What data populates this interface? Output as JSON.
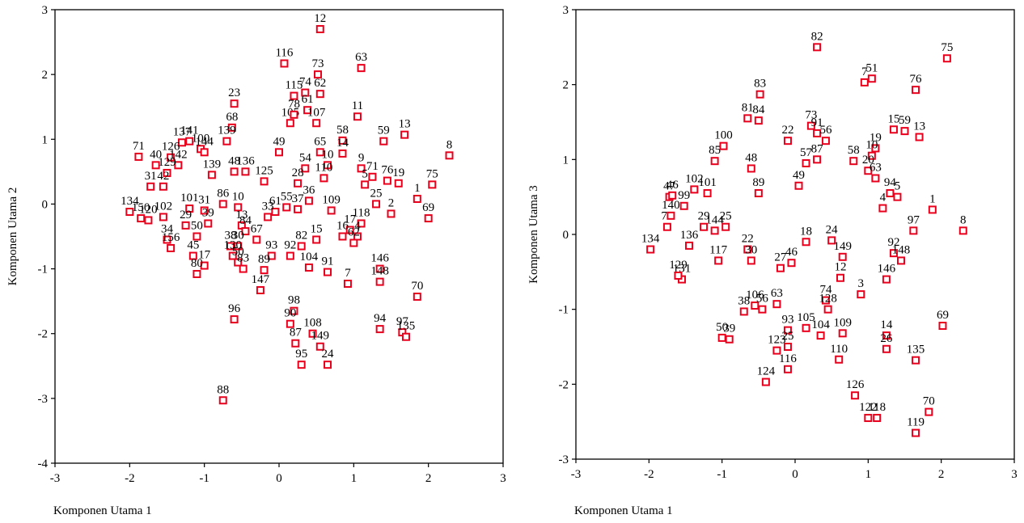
{
  "chart_data": [
    {
      "type": "scatter",
      "xlabel": "Komponen Utama 1",
      "ylabel": "Komponen Utama 2",
      "xlim": [
        -3,
        3
      ],
      "ylim": [
        -4,
        3
      ],
      "xticks": [
        -3,
        -2,
        -1,
        0,
        1,
        2,
        3
      ],
      "yticks": [
        -4,
        -3,
        -2,
        -1,
        0,
        1,
        2,
        3
      ],
      "grid": false,
      "marker_color": "#e8001c",
      "points": [
        {
          "label": "12",
          "x": 0.55,
          "y": 2.7
        },
        {
          "label": "116",
          "x": 0.07,
          "y": 2.17
        },
        {
          "label": "63",
          "x": 1.1,
          "y": 2.1
        },
        {
          "label": "73",
          "x": 0.52,
          "y": 2.0
        },
        {
          "label": "115",
          "x": 0.2,
          "y": 1.67
        },
        {
          "label": "74",
          "x": 0.35,
          "y": 1.72
        },
        {
          "label": "62",
          "x": 0.55,
          "y": 1.7
        },
        {
          "label": "61",
          "x": 0.38,
          "y": 1.45
        },
        {
          "label": "23",
          "x": -0.6,
          "y": 1.55
        },
        {
          "label": "11",
          "x": 1.05,
          "y": 1.35
        },
        {
          "label": "13",
          "x": 1.68,
          "y": 1.07
        },
        {
          "label": "59",
          "x": 1.4,
          "y": 0.97
        },
        {
          "label": "8",
          "x": 2.28,
          "y": 0.75
        },
        {
          "label": "68",
          "x": -0.63,
          "y": 1.18
        },
        {
          "label": "139",
          "x": -0.7,
          "y": 0.97
        },
        {
          "label": "105",
          "x": 0.15,
          "y": 1.25
        },
        {
          "label": "78",
          "x": 0.2,
          "y": 1.38
        },
        {
          "label": "107",
          "x": 0.5,
          "y": 1.25
        },
        {
          "label": "137",
          "x": -1.3,
          "y": 0.95
        },
        {
          "label": "141",
          "x": -1.2,
          "y": 0.97
        },
        {
          "label": "100",
          "x": -1.05,
          "y": 0.85
        },
        {
          "label": "144",
          "x": -1.0,
          "y": 0.8
        },
        {
          "label": "71",
          "x": -1.88,
          "y": 0.73
        },
        {
          "label": "40",
          "x": -1.65,
          "y": 0.6
        },
        {
          "label": "126",
          "x": -1.45,
          "y": 0.72
        },
        {
          "label": "142",
          "x": -1.35,
          "y": 0.6
        },
        {
          "label": "129",
          "x": -1.5,
          "y": 0.48
        },
        {
          "label": "31",
          "x": -1.72,
          "y": 0.27
        },
        {
          "label": "42",
          "x": -1.55,
          "y": 0.27
        },
        {
          "label": "48",
          "x": -0.6,
          "y": 0.5
        },
        {
          "label": "139b",
          "x": -0.9,
          "y": 0.45
        },
        {
          "label": "136",
          "x": -0.45,
          "y": 0.5
        },
        {
          "label": "65",
          "x": 0.55,
          "y": 0.8
        },
        {
          "label": "49",
          "x": 0.0,
          "y": 0.8
        },
        {
          "label": "58",
          "x": 0.85,
          "y": 0.98
        },
        {
          "label": "14",
          "x": 0.85,
          "y": 0.78
        },
        {
          "label": "9",
          "x": 1.1,
          "y": 0.55
        },
        {
          "label": "10",
          "x": 0.65,
          "y": 0.6
        },
        {
          "label": "71b",
          "x": 1.25,
          "y": 0.42
        },
        {
          "label": "76",
          "x": 1.45,
          "y": 0.36
        },
        {
          "label": "19",
          "x": 1.6,
          "y": 0.32
        },
        {
          "label": "75",
          "x": 2.05,
          "y": 0.3
        },
        {
          "label": "5",
          "x": 1.15,
          "y": 0.3
        },
        {
          "label": "1",
          "x": 1.85,
          "y": 0.08
        },
        {
          "label": "69",
          "x": 2.0,
          "y": -0.22
        },
        {
          "label": "25",
          "x": 1.3,
          "y": 0.0
        },
        {
          "label": "2",
          "x": 1.5,
          "y": -0.15
        },
        {
          "label": "118",
          "x": 1.1,
          "y": -0.3
        },
        {
          "label": "17",
          "x": 0.95,
          "y": -0.4
        },
        {
          "label": "4",
          "x": 1.05,
          "y": -0.5
        },
        {
          "label": "16",
          "x": 0.85,
          "y": -0.5
        },
        {
          "label": "62b",
          "x": 1.0,
          "y": -0.6
        },
        {
          "label": "109",
          "x": 0.7,
          "y": -0.1
        },
        {
          "label": "110",
          "x": 0.6,
          "y": 0.4
        },
        {
          "label": "54",
          "x": 0.35,
          "y": 0.55
        },
        {
          "label": "28",
          "x": 0.25,
          "y": 0.32
        },
        {
          "label": "125",
          "x": -0.2,
          "y": 0.35
        },
        {
          "label": "134",
          "x": -2.0,
          "y": -0.12
        },
        {
          "label": "150",
          "x": -1.85,
          "y": -0.22
        },
        {
          "label": "120",
          "x": -1.75,
          "y": -0.25
        },
        {
          "label": "102",
          "x": -1.55,
          "y": -0.2
        },
        {
          "label": "101",
          "x": -1.2,
          "y": -0.07
        },
        {
          "label": "31b",
          "x": -1.0,
          "y": -0.1
        },
        {
          "label": "29",
          "x": -1.25,
          "y": -0.33
        },
        {
          "label": "39",
          "x": -0.95,
          "y": -0.3
        },
        {
          "label": "34",
          "x": -1.5,
          "y": -0.55
        },
        {
          "label": "156",
          "x": -1.45,
          "y": -0.68
        },
        {
          "label": "50",
          "x": -1.1,
          "y": -0.5
        },
        {
          "label": "45",
          "x": -1.15,
          "y": -0.8
        },
        {
          "label": "17b",
          "x": -1.0,
          "y": -0.95
        },
        {
          "label": "80",
          "x": -1.1,
          "y": -1.08
        },
        {
          "label": "86",
          "x": -0.75,
          "y": 0.0
        },
        {
          "label": "10b",
          "x": -0.55,
          "y": -0.05
        },
        {
          "label": "13b",
          "x": -0.5,
          "y": -0.33
        },
        {
          "label": "84",
          "x": -0.45,
          "y": -0.42
        },
        {
          "label": "38",
          "x": -0.65,
          "y": -0.65
        },
        {
          "label": "30",
          "x": -0.55,
          "y": -0.65
        },
        {
          "label": "130",
          "x": -0.62,
          "y": -0.8
        },
        {
          "label": "50b",
          "x": -0.55,
          "y": -0.9
        },
        {
          "label": "83",
          "x": -0.48,
          "y": -1.0
        },
        {
          "label": "67",
          "x": -0.3,
          "y": -0.55
        },
        {
          "label": "93",
          "x": -0.1,
          "y": -0.8
        },
        {
          "label": "89",
          "x": -0.2,
          "y": -1.02
        },
        {
          "label": "147",
          "x": -0.25,
          "y": -1.33
        },
        {
          "label": "92",
          "x": 0.15,
          "y": -0.8
        },
        {
          "label": "82",
          "x": 0.3,
          "y": -0.65
        },
        {
          "label": "104",
          "x": 0.4,
          "y": -0.98
        },
        {
          "label": "15",
          "x": 0.5,
          "y": -0.55
        },
        {
          "label": "91",
          "x": 0.65,
          "y": -1.05
        },
        {
          "label": "7",
          "x": 0.92,
          "y": -1.23
        },
        {
          "label": "146",
          "x": 1.35,
          "y": -1.0
        },
        {
          "label": "148",
          "x": 1.35,
          "y": -1.2
        },
        {
          "label": "70",
          "x": 1.85,
          "y": -1.43
        },
        {
          "label": "94",
          "x": 1.35,
          "y": -1.93
        },
        {
          "label": "97",
          "x": 1.65,
          "y": -1.98
        },
        {
          "label": "135",
          "x": 1.7,
          "y": -2.05
        },
        {
          "label": "96",
          "x": -0.6,
          "y": -1.78
        },
        {
          "label": "98",
          "x": 0.2,
          "y": -1.65
        },
        {
          "label": "90",
          "x": 0.15,
          "y": -1.85
        },
        {
          "label": "108",
          "x": 0.45,
          "y": -2.0
        },
        {
          "label": "87",
          "x": 0.22,
          "y": -2.15
        },
        {
          "label": "149",
          "x": 0.55,
          "y": -2.2
        },
        {
          "label": "95",
          "x": 0.3,
          "y": -2.48
        },
        {
          "label": "24",
          "x": 0.65,
          "y": -2.48
        },
        {
          "label": "88",
          "x": -0.75,
          "y": -3.03
        },
        {
          "label": "61b",
          "x": -0.05,
          "y": -0.12
        },
        {
          "label": "55",
          "x": 0.1,
          "y": -0.05
        },
        {
          "label": "37",
          "x": 0.25,
          "y": -0.08
        },
        {
          "label": "36",
          "x": 0.4,
          "y": 0.05
        },
        {
          "label": "33",
          "x": -0.15,
          "y": -0.2
        }
      ]
    },
    {
      "type": "scatter",
      "xlabel": "Komponen Utama 1",
      "ylabel": "Komponen Utama 3",
      "xlim": [
        -3,
        3
      ],
      "ylim": [
        -3,
        3
      ],
      "xticks": [
        -3,
        -2,
        -1,
        0,
        1,
        2,
        3
      ],
      "yticks": [
        -3,
        -2,
        -1,
        0,
        1,
        2,
        3
      ],
      "grid": false,
      "marker_color": "#e8001c",
      "points": [
        {
          "label": "82",
          "x": 0.3,
          "y": 2.5
        },
        {
          "label": "75",
          "x": 2.08,
          "y": 2.35
        },
        {
          "label": "7",
          "x": 0.95,
          "y": 2.03
        },
        {
          "label": "51",
          "x": 1.05,
          "y": 2.08
        },
        {
          "label": "76",
          "x": 1.65,
          "y": 1.93
        },
        {
          "label": "83",
          "x": -0.48,
          "y": 1.87
        },
        {
          "label": "81",
          "x": -0.65,
          "y": 1.55
        },
        {
          "label": "84",
          "x": -0.5,
          "y": 1.52
        },
        {
          "label": "73",
          "x": 0.22,
          "y": 1.45
        },
        {
          "label": "91",
          "x": 0.3,
          "y": 1.35
        },
        {
          "label": "15",
          "x": 1.35,
          "y": 1.4
        },
        {
          "label": "59",
          "x": 1.5,
          "y": 1.38
        },
        {
          "label": "13",
          "x": 1.7,
          "y": 1.3
        },
        {
          "label": "100",
          "x": -0.98,
          "y": 1.18
        },
        {
          "label": "22",
          "x": -0.1,
          "y": 1.25
        },
        {
          "label": "56",
          "x": 0.42,
          "y": 1.25
        },
        {
          "label": "19",
          "x": 1.1,
          "y": 1.15
        },
        {
          "label": "10",
          "x": 1.05,
          "y": 1.05
        },
        {
          "label": "85",
          "x": -1.1,
          "y": 0.98
        },
        {
          "label": "48",
          "x": -0.6,
          "y": 0.88
        },
        {
          "label": "58",
          "x": 0.8,
          "y": 0.98
        },
        {
          "label": "20",
          "x": 1.0,
          "y": 0.85
        },
        {
          "label": "63",
          "x": 1.1,
          "y": 0.75
        },
        {
          "label": "57",
          "x": 0.15,
          "y": 0.95
        },
        {
          "label": "87",
          "x": 0.3,
          "y": 1.0
        },
        {
          "label": "49",
          "x": 0.05,
          "y": 0.65
        },
        {
          "label": "89",
          "x": -0.5,
          "y": 0.55
        },
        {
          "label": "102",
          "x": -1.38,
          "y": 0.6
        },
        {
          "label": "101",
          "x": -1.2,
          "y": 0.55
        },
        {
          "label": "47",
          "x": -1.72,
          "y": 0.5
        },
        {
          "label": "46",
          "x": -1.68,
          "y": 0.52
        },
        {
          "label": "94",
          "x": 1.3,
          "y": 0.55
        },
        {
          "label": "5",
          "x": 1.4,
          "y": 0.5
        },
        {
          "label": "4",
          "x": 1.2,
          "y": 0.35
        },
        {
          "label": "1",
          "x": 1.88,
          "y": 0.33
        },
        {
          "label": "97",
          "x": 1.62,
          "y": 0.05
        },
        {
          "label": "8",
          "x": 2.3,
          "y": 0.05
        },
        {
          "label": "92",
          "x": 1.35,
          "y": -0.25
        },
        {
          "label": "148",
          "x": 1.45,
          "y": -0.35
        },
        {
          "label": "146",
          "x": 1.25,
          "y": -0.6
        },
        {
          "label": "71",
          "x": -1.75,
          "y": 0.1
        },
        {
          "label": "134",
          "x": -1.98,
          "y": -0.2
        },
        {
          "label": "140",
          "x": -1.7,
          "y": 0.25
        },
        {
          "label": "99",
          "x": -1.52,
          "y": 0.38
        },
        {
          "label": "136",
          "x": -1.45,
          "y": -0.15
        },
        {
          "label": "131",
          "x": -1.55,
          "y": -0.6
        },
        {
          "label": "129",
          "x": -1.6,
          "y": -0.55
        },
        {
          "label": "144",
          "x": -1.1,
          "y": 0.05
        },
        {
          "label": "117",
          "x": -1.05,
          "y": -0.35
        },
        {
          "label": "22b",
          "x": -0.65,
          "y": -0.2
        },
        {
          "label": "30",
          "x": -0.6,
          "y": -0.35
        },
        {
          "label": "25",
          "x": -0.95,
          "y": 0.1
        },
        {
          "label": "29",
          "x": -1.25,
          "y": 0.1
        },
        {
          "label": "12",
          "x": 0.62,
          "y": -0.58
        },
        {
          "label": "3",
          "x": 0.9,
          "y": -0.8
        },
        {
          "label": "24",
          "x": 0.5,
          "y": -0.08
        },
        {
          "label": "149",
          "x": 0.65,
          "y": -0.3
        },
        {
          "label": "18",
          "x": 0.15,
          "y": -0.1
        },
        {
          "label": "27",
          "x": -0.2,
          "y": -0.45
        },
        {
          "label": "46b",
          "x": -0.05,
          "y": -0.38
        },
        {
          "label": "74",
          "x": 0.42,
          "y": -0.88
        },
        {
          "label": "128",
          "x": 0.45,
          "y": -1.0
        },
        {
          "label": "106",
          "x": -0.55,
          "y": -0.95
        },
        {
          "label": "38",
          "x": -0.7,
          "y": -1.03
        },
        {
          "label": "56b",
          "x": -0.45,
          "y": -1.0
        },
        {
          "label": "63b",
          "x": -0.25,
          "y": -0.93
        },
        {
          "label": "109",
          "x": 0.65,
          "y": -1.32
        },
        {
          "label": "93",
          "x": -0.1,
          "y": -1.28
        },
        {
          "label": "105",
          "x": 0.15,
          "y": -1.25
        },
        {
          "label": "104",
          "x": 0.35,
          "y": -1.35
        },
        {
          "label": "50",
          "x": -1.0,
          "y": -1.38
        },
        {
          "label": "39",
          "x": -0.9,
          "y": -1.4
        },
        {
          "label": "123",
          "x": -0.25,
          "y": -1.55
        },
        {
          "label": "25b",
          "x": -0.1,
          "y": -1.5
        },
        {
          "label": "110",
          "x": 0.6,
          "y": -1.67
        },
        {
          "label": "116",
          "x": -0.1,
          "y": -1.8
        },
        {
          "label": "124",
          "x": -0.4,
          "y": -1.97
        },
        {
          "label": "14",
          "x": 1.25,
          "y": -1.35
        },
        {
          "label": "26",
          "x": 1.25,
          "y": -1.53
        },
        {
          "label": "69",
          "x": 2.02,
          "y": -1.22
        },
        {
          "label": "135",
          "x": 1.65,
          "y": -1.68
        },
        {
          "label": "126",
          "x": 0.82,
          "y": -2.15
        },
        {
          "label": "122",
          "x": 1.0,
          "y": -2.45
        },
        {
          "label": "118",
          "x": 1.12,
          "y": -2.45
        },
        {
          "label": "70",
          "x": 1.83,
          "y": -2.37
        },
        {
          "label": "119",
          "x": 1.65,
          "y": -2.65
        }
      ]
    }
  ]
}
